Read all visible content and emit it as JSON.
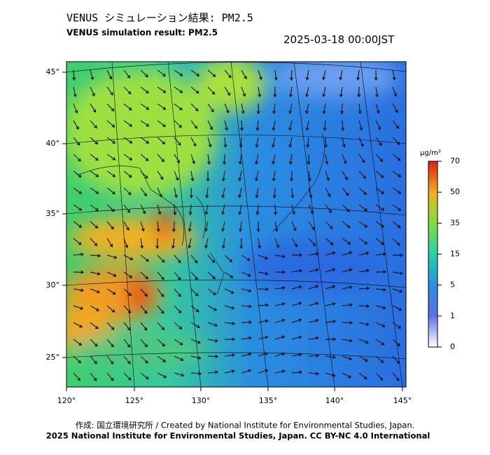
{
  "header": {
    "title": "VENUS シミュレーション結果: PM2.5",
    "subtitle": "VENUS simulation result: PM2.5",
    "datetime": "2025-03-18 00:00JST"
  },
  "map": {
    "lat_labels": [
      "45°",
      "40°",
      "35°",
      "30°",
      "25°"
    ],
    "lon_labels": [
      "120°",
      "125°",
      "130°",
      "135°",
      "140°",
      "145°"
    ]
  },
  "colorbar": {
    "unit": "μg/m³",
    "labels": [
      "70",
      "50",
      "35",
      "15",
      "5",
      "1",
      "0"
    ]
  },
  "footer": {
    "credit": "作成: 国立環境研究所 / Created by National Institute for Environmental Studies, Japan.",
    "license": "2025 National Institute for Environmental Studies, Japan. CC BY-NC 4.0 International"
  }
}
